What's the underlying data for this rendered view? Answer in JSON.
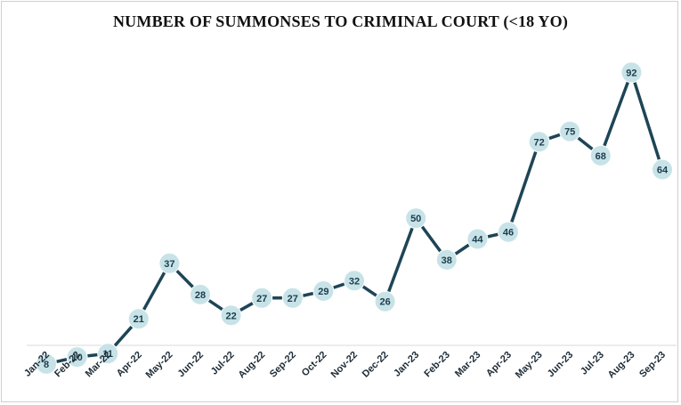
{
  "chart_data": {
    "type": "line",
    "title": "NUMBER OF SUMMONSES TO CRIMINAL COURT (<18 YO)",
    "xlabel": "",
    "ylabel": "",
    "categories": [
      "Jan-22",
      "Feb-22",
      "Mar-22",
      "Apr-22",
      "May-22",
      "Jun-22",
      "Jul-22",
      "Aug-22",
      "Sep-22",
      "Oct-22",
      "Nov-22",
      "Dec-22",
      "Jan-23",
      "Feb-23",
      "Mar-23",
      "Apr-23",
      "May-23",
      "Jun-23",
      "Jul-23",
      "Aug-23",
      "Sep-23"
    ],
    "series": [
      {
        "values": [
          8,
          10,
          11,
          21,
          37,
          28,
          22,
          27,
          27,
          29,
          32,
          26,
          50,
          38,
          44,
          46,
          72,
          75,
          68,
          92,
          64
        ]
      }
    ],
    "ylim": [
      0,
      100
    ],
    "grid": false,
    "legend": "none",
    "data_labels": true,
    "colors": {
      "line": "#1d4556",
      "marker_fill": "#c7e3e8",
      "label": "#1d3c4c",
      "axis": "#d9d9d9"
    }
  }
}
